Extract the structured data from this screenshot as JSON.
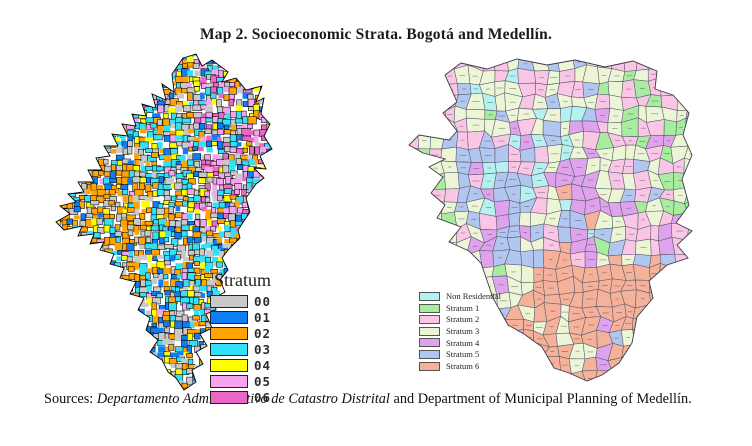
{
  "title": "Map 2. Socioeconomic Strata. Bogotá and Medellín.",
  "left_map": {
    "legend": {
      "title": "Stratum",
      "items": [
        {
          "label": "00",
          "color": "#c9c9c9"
        },
        {
          "label": "01",
          "color": "#0d7ef4"
        },
        {
          "label": "02",
          "color": "#ffa404"
        },
        {
          "label": "03",
          "color": "#33e0f8"
        },
        {
          "label": "04",
          "color": "#fdff00"
        },
        {
          "label": "05",
          "color": "#f6a4ef"
        },
        {
          "label": "06",
          "color": "#eb68c8"
        }
      ]
    }
  },
  "right_map": {
    "legend": {
      "items": [
        {
          "label": "Non Residential",
          "color": "#b5f1f1"
        },
        {
          "label": "Stratum 1",
          "color": "#a8eca0"
        },
        {
          "label": "Stratum 2",
          "color": "#f9c6e5"
        },
        {
          "label": "Stratum 3",
          "color": "#edf5d7"
        },
        {
          "label": "Stratum 4",
          "color": "#dfa2ec"
        },
        {
          "label": "Stratum 5",
          "color": "#b2c7f0"
        },
        {
          "label": "Stratum 6",
          "color": "#f5b199"
        }
      ]
    }
  },
  "caption": {
    "prefix": "Sources: ",
    "source_italic": "Departamento Administrativo de Catastro Distrital",
    "suffix": " and Department of Municipal Planning of Medellín."
  }
}
